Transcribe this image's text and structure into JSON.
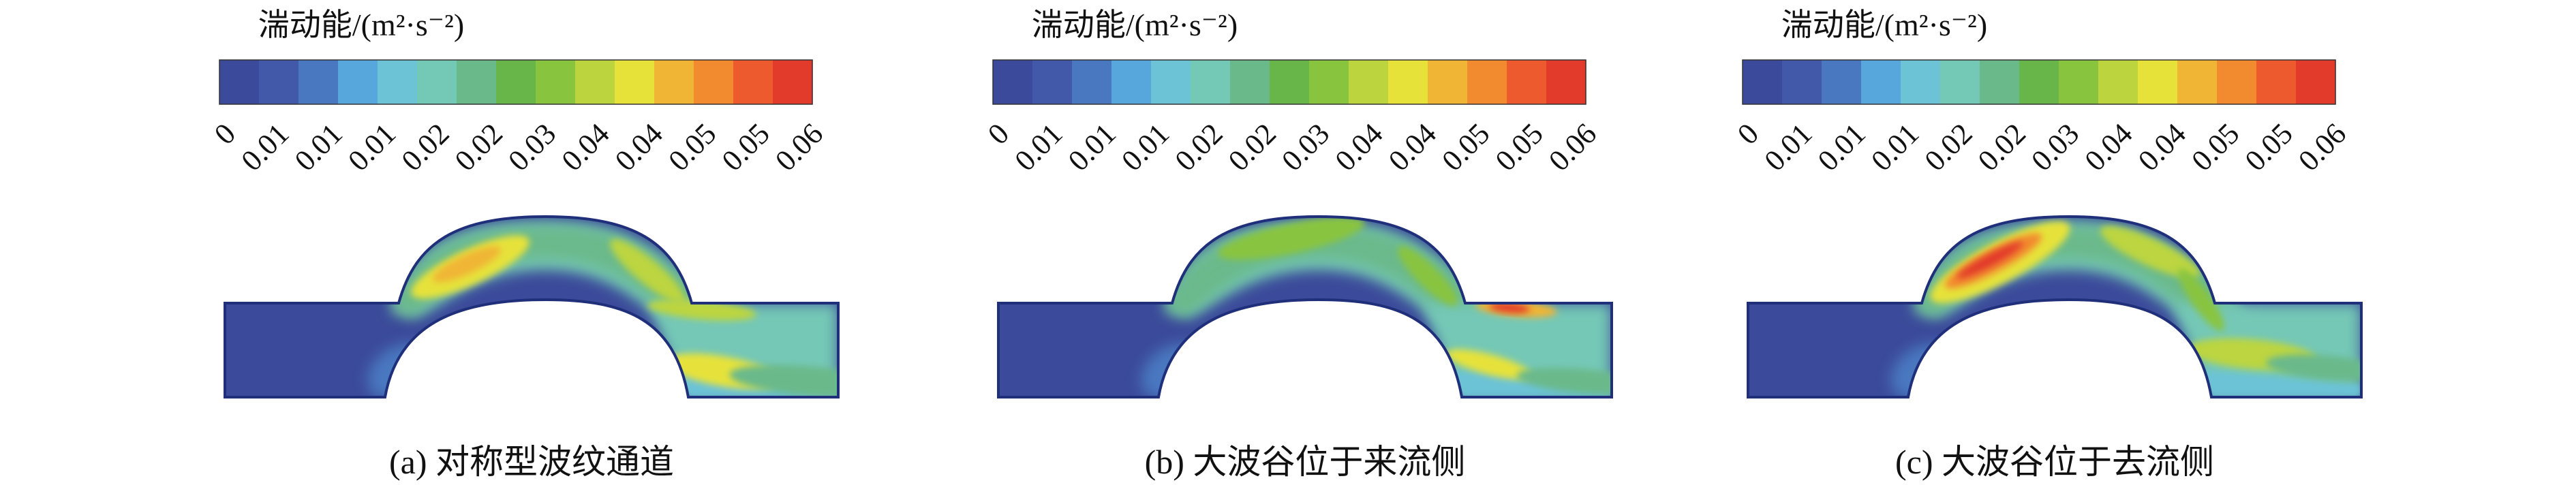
{
  "colorbar": {
    "title": "湍动能/(m²·s⁻²)",
    "ticks": [
      "0",
      "0.01",
      "0.01",
      "0.01",
      "0.02",
      "0.02",
      "0.03",
      "0.04",
      "0.04",
      "0.05",
      "0.05",
      "0.06"
    ],
    "colors": [
      "#3b4a9a",
      "#4159a8",
      "#4a78c0",
      "#57a7dc",
      "#6cc3d6",
      "#74c8b6",
      "#6ab98b",
      "#68b54a",
      "#89c43f",
      "#bcd53f",
      "#e6e23a",
      "#f0b534",
      "#f28a2f",
      "#ec5a2d",
      "#e23b2c"
    ]
  },
  "panels": [
    {
      "caption": "(a) 对称型波纹通道",
      "variant": "symmetric"
    },
    {
      "caption": "(b) 大波谷位于来流侧",
      "variant": "inflow"
    },
    {
      "caption": "(c) 大波谷位于去流侧",
      "variant": "outflow"
    }
  ]
}
